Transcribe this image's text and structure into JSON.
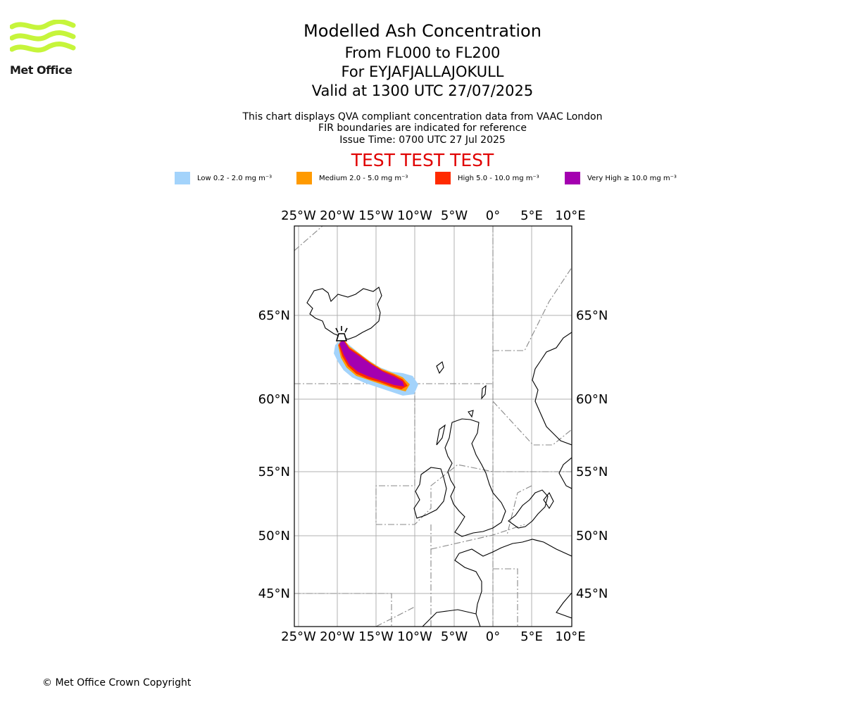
{
  "logo": {
    "text": "Met Office",
    "color": "#c6f53b"
  },
  "header": {
    "title": "Modelled Ash Concentration",
    "levels": "From FL000 to FL200",
    "volcano": "For EYJAFJALLAJOKULL",
    "valid": "Valid at 1300 UTC 27/07/2025",
    "note1": "This chart displays QVA compliant concentration data from VAAC London",
    "note2": "FIR boundaries are indicated for reference",
    "issue": "Issue Time: 0700 UTC 27 Jul 2025",
    "test": "TEST TEST TEST"
  },
  "legend": [
    {
      "label": "Low 0.2 - 2.0 mg m⁻³",
      "color": "#a3d3fb"
    },
    {
      "label": "Medium 2.0 - 5.0 mg m⁻³",
      "color": "#ff9a00"
    },
    {
      "label": "High 5.0 - 10.0 mg m⁻³",
      "color": "#ff2a00"
    },
    {
      "label": "Very High ≥ 10.0 mg m⁻³",
      "color": "#a400b0"
    }
  ],
  "axes": {
    "lon_labels": [
      "25°W",
      "20°W",
      "15°W",
      "10°W",
      "5°W",
      "0°",
      "5°E",
      "10°E"
    ],
    "lat_labels": [
      "65°N",
      "60°N",
      "55°N",
      "50°N",
      "45°N"
    ]
  },
  "footer": {
    "copyright": "© Met Office Crown Copyright"
  }
}
